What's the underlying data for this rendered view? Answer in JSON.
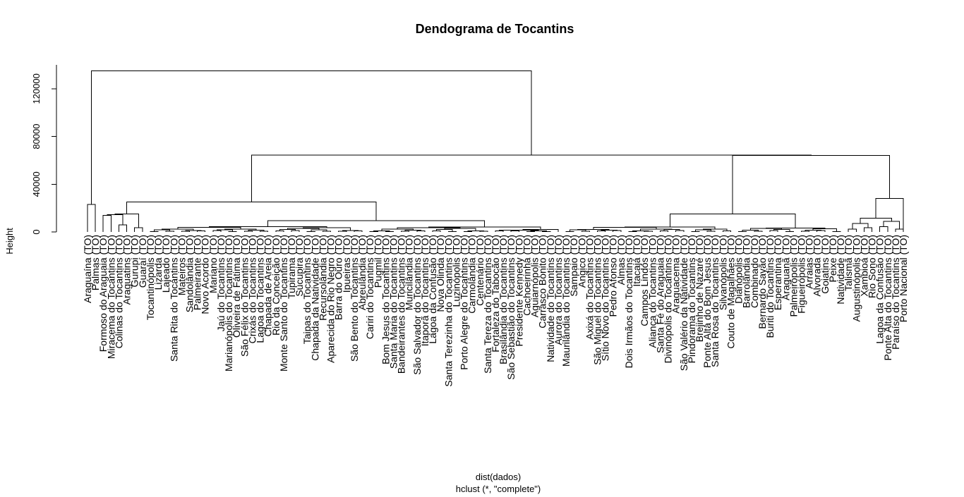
{
  "chart_data": {
    "type": "dendrogram",
    "title": "Dendograma de Tocantins",
    "xlabel": "dist(dados)",
    "xlabel_sub": "hclust (*, \"complete\")",
    "ylabel": "Height",
    "ylim": [
      0,
      140000
    ],
    "yticks": [
      0,
      40000,
      80000,
      120000
    ],
    "ytick_labels": [
      "0",
      "40000",
      "80000",
      "120000"
    ],
    "leaves": [
      "Araguaína (TO)",
      "Palmas (TO)",
      "Formoso do Araguaia (TO)",
      "Miracema do Tocantins (TO)",
      "Colinas do Tocantins (TO)",
      "Araguatins (TO)",
      "Gurupi (TO)",
      "Guaraí (TO)",
      "Tocantinópolis (TO)",
      "Lizarda (TO)",
      "Lajeado (TO)",
      "Santa Rita do Tocantins (TO)",
      "Mateiros (TO)",
      "Sandolândia (TO)",
      "Palmeirante (TO)",
      "Novo Acordo (TO)",
      "Mariano (TO)",
      "Jaú do Tocantins (TO)",
      "Marianópolis do Tocantins (TO)",
      "Oliveira de Fátima (TO)",
      "São Félix do Tocantins (TO)",
      "Crixás do Tocantins (TO)",
      "Lagoa do Tocantins (TO)",
      "Chapada de Areia (TO)",
      "Rio da Conceição (TO)",
      "Monte Santo do Tocantins (TO)",
      "Tupirama (TO)",
      "Sucupira (TO)",
      "Taipas do Tocantins (TO)",
      "Chapada da Natividade (TO)",
      "Recursolândia (TO)",
      "Aparecida do Rio Negro (TO)",
      "Barra do Ouro (TO)",
      "Ipueiras (TO)",
      "São Bento do Tocantins (TO)",
      "Abreulândia (TO)",
      "Cariri do Tocantins (TO)",
      "Pugmil (TO)",
      "Bom Jesus do Tocantins (TO)",
      "Santa Maria do Tocantins (TO)",
      "Bandeirantes do Tocantins (TO)",
      "Muricilândia (TO)",
      "São Salvador do Tocantins (TO)",
      "Itaporã do Tocantins (TO)",
      "Lagoa da Confusão (TO)",
      "Nova Olinda (TO)",
      "Santa Terezinha do Tocantins (TO)",
      "Luzinópolis (TO)",
      "Porto Alegre do Tocantins (TO)",
      "Carmolândia (TO)",
      "Centenário (TO)",
      "Santa Tereza do Tocantins (TO)",
      "Fortaleza do Tabocão (TO)",
      "Brasilândia do Tocantins (TO)",
      "São Sebastião do Tocantins (TO)",
      "Presidente Kennedy (TO)",
      "Cachoeirinha (TO)",
      "Aguiarnópolis (TO)",
      "Carrasco Bonito (TO)",
      "Natividade do Tocantins (TO)",
      "Aurora do Tocantins (TO)",
      "Maurilândia do Tocantins (TO)",
      "Sampaio (TO)",
      "Angico (TO)",
      "Axixá do Tocantins (TO)",
      "São Miguel do Tocantins (TO)",
      "Sítio Novo do Tocantins (TO)",
      "Pedro Afonso (TO)",
      "Almas (TO)",
      "Dois Irmãos do Tocantins (TO)",
      "Itacajá (TO)",
      "Campos Lindos (TO)",
      "Aliança do Tocantins (TO)",
      "Santa Fé do Araguaia (TO)",
      "Divinópolis do Tocantins (TO)",
      "Araguacema (TO)",
      "São Valério da Natividade (TO)",
      "Pindorama do Tocantins (TO)",
      "Brejinho de Nazaré (TO)",
      "Ponte Alta do Bom Jesus (TO)",
      "Santa Rosa do Tocantins (TO)",
      "Silvanópolis (TO)",
      "Couto de Magalhães (TO)",
      "Dianópolis (TO)",
      "Barrolândia (TO)",
      "Combinado (TO)",
      "Bernardo Sayão (TO)",
      "Buriti do Tocantins (TO)",
      "Esperantina (TO)",
      "Araguanã (TO)",
      "Palmeirópolis (TO)",
      "Figueirópolis (TO)",
      "Arraias (TO)",
      "Alvorada (TO)",
      "Goiatins (TO)",
      "Peixe (TO)",
      "Natividade (TO)",
      "Talismã (TO)",
      "Augustinópolis (TO)",
      "Xambioá (TO)",
      "Rio Sono (TO)",
      "Lagoa da Confusão (TO)",
      "Ponte Alta do Tocantins (TO)",
      "Paraíso do Tocantins (TO)",
      "Porto Nacional (TO)"
    ]
  }
}
